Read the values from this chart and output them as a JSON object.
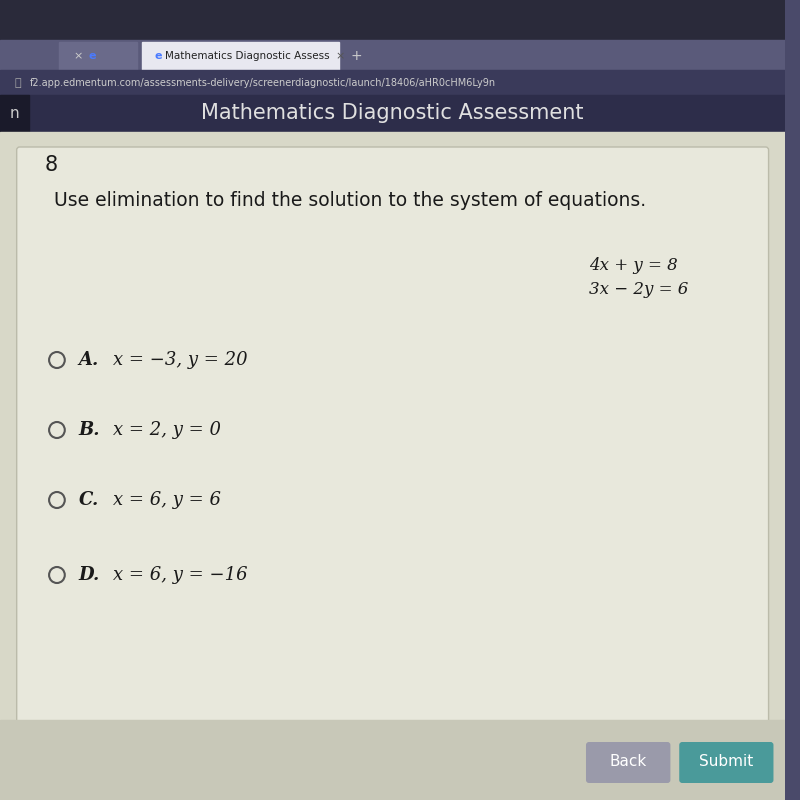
{
  "browser_tab_text": "Mathematics Diagnostic Assess",
  "url_text": "f2.app.edmentum.com/assessments-delivery/screenerdiagnostic/launch/18406/aHR0cHM6Ly9n",
  "header_title": "Mathematics Diagnostic Assessment",
  "question_number": "8",
  "question_text": "Use elimination to find the solution to the system of equations.",
  "equation1": "4x + y = 8",
  "equation2": "3x − 2y = 6",
  "options": [
    {
      "label": "A.",
      "text": "x = −3, y = 20"
    },
    {
      "label": "B.",
      "text": "x = 2, y = 0"
    },
    {
      "label": "C.",
      "text": "x = 6, y = 6"
    },
    {
      "label": "D.",
      "text": "x = 6, y = −16"
    }
  ],
  "bg_browser": "#4a4a6a",
  "bg_tab_active": "#e8e8f0",
  "bg_tab_inactive": "#6a6a8a",
  "bg_header": "#2d2d4a",
  "bg_content": "#d8d8c8",
  "bg_card": "#e8e8dc",
  "text_color_dark": "#1a1a1a",
  "text_color_header": "#e0e0e0",
  "text_color_gray": "#555555",
  "bottom_bg": "#c8c8b8",
  "button_back_color": "#9a9aaa",
  "button_submit_color": "#4a9a9a"
}
